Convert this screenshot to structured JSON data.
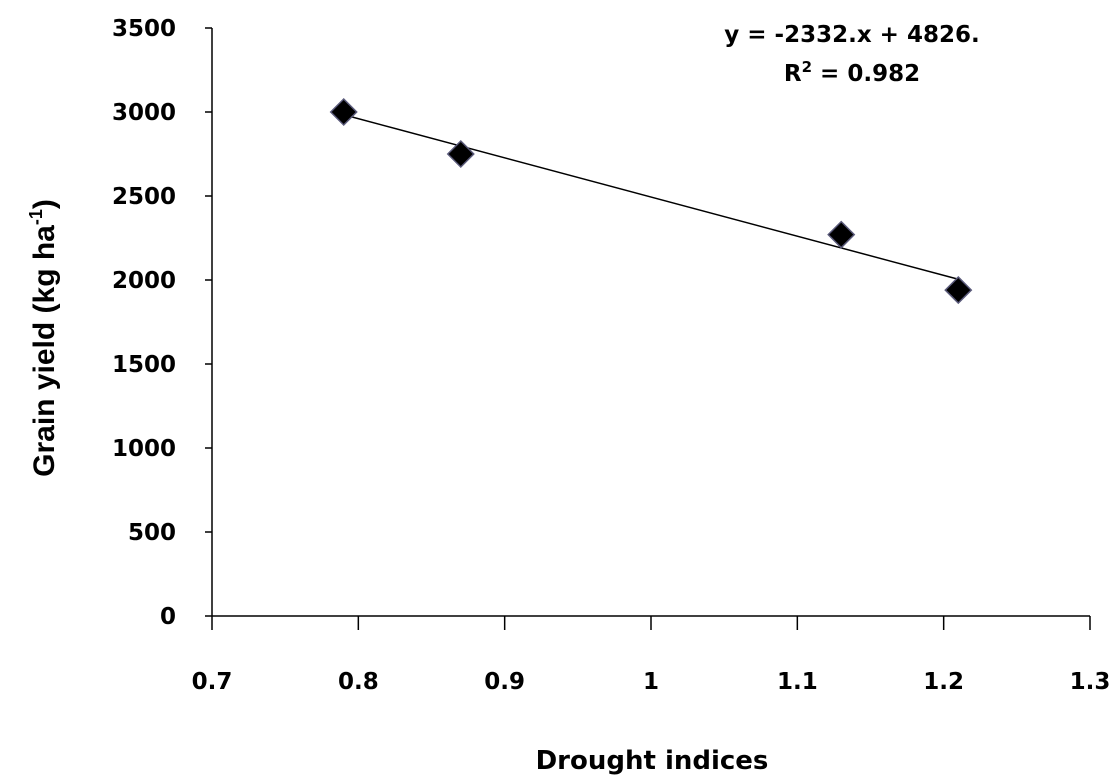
{
  "chart_data": {
    "type": "scatter",
    "xlabel": "Drought indices",
    "ylabel_main": "Grain yield (kg ha",
    "ylabel_sup": "-1",
    "ylabel_close": ")",
    "xlim": [
      0.7,
      1.3
    ],
    "ylim": [
      0,
      3500
    ],
    "x_ticks": [
      "0.7",
      "0.8",
      "0.9",
      "1",
      "1.1",
      "1.2",
      "1.3"
    ],
    "y_ticks": [
      "0",
      "500",
      "1000",
      "1500",
      "2000",
      "2500",
      "3000",
      "3500"
    ],
    "grid": false,
    "points": [
      {
        "x": 0.79,
        "y": 3000
      },
      {
        "x": 0.87,
        "y": 2750
      },
      {
        "x": 1.13,
        "y": 2270
      },
      {
        "x": 1.21,
        "y": 1940
      }
    ],
    "trendline": {
      "type": "linear",
      "slope": -2332,
      "intercept": 4826,
      "x_range": [
        0.79,
        1.21
      ],
      "equation": "y = -2332.x + 4826.",
      "r2_prefix": "R",
      "r2_sup": "2",
      "r2_suffix": " = 0.982"
    },
    "colors": {
      "marker": "#000000",
      "line": "#000000",
      "axis": "#000000"
    }
  }
}
